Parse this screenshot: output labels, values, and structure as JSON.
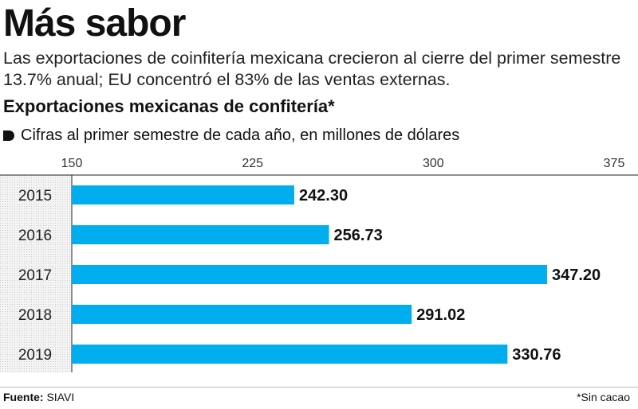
{
  "headline": "Más sabor",
  "deck": "Las exportaciones de coinfitería mexicana crecieron al cierre del primer semestre 13.7% anual; EU concentró el 83% de las ventas externas.",
  "chart_data": {
    "type": "bar",
    "orientation": "horizontal",
    "title": "Exportaciones mexicanas de confitería*",
    "subtitle": "Cifras al primer semestre de cada año, en millones de dólares",
    "categories": [
      "2015",
      "2016",
      "2017",
      "2018",
      "2019"
    ],
    "values": [
      242.3,
      256.73,
      347.2,
      291.02,
      330.76
    ],
    "value_labels": [
      "242.30",
      "256.73",
      "347.20",
      "291.02",
      "330.76"
    ],
    "xlim": [
      150,
      375
    ],
    "xticks": [
      150,
      225,
      300,
      375
    ],
    "grid": false,
    "bar_color": "#00aeef"
  },
  "footer": {
    "source_label": "Fuente:",
    "source_value": "SIAVI",
    "note": "*Sin cacao"
  }
}
